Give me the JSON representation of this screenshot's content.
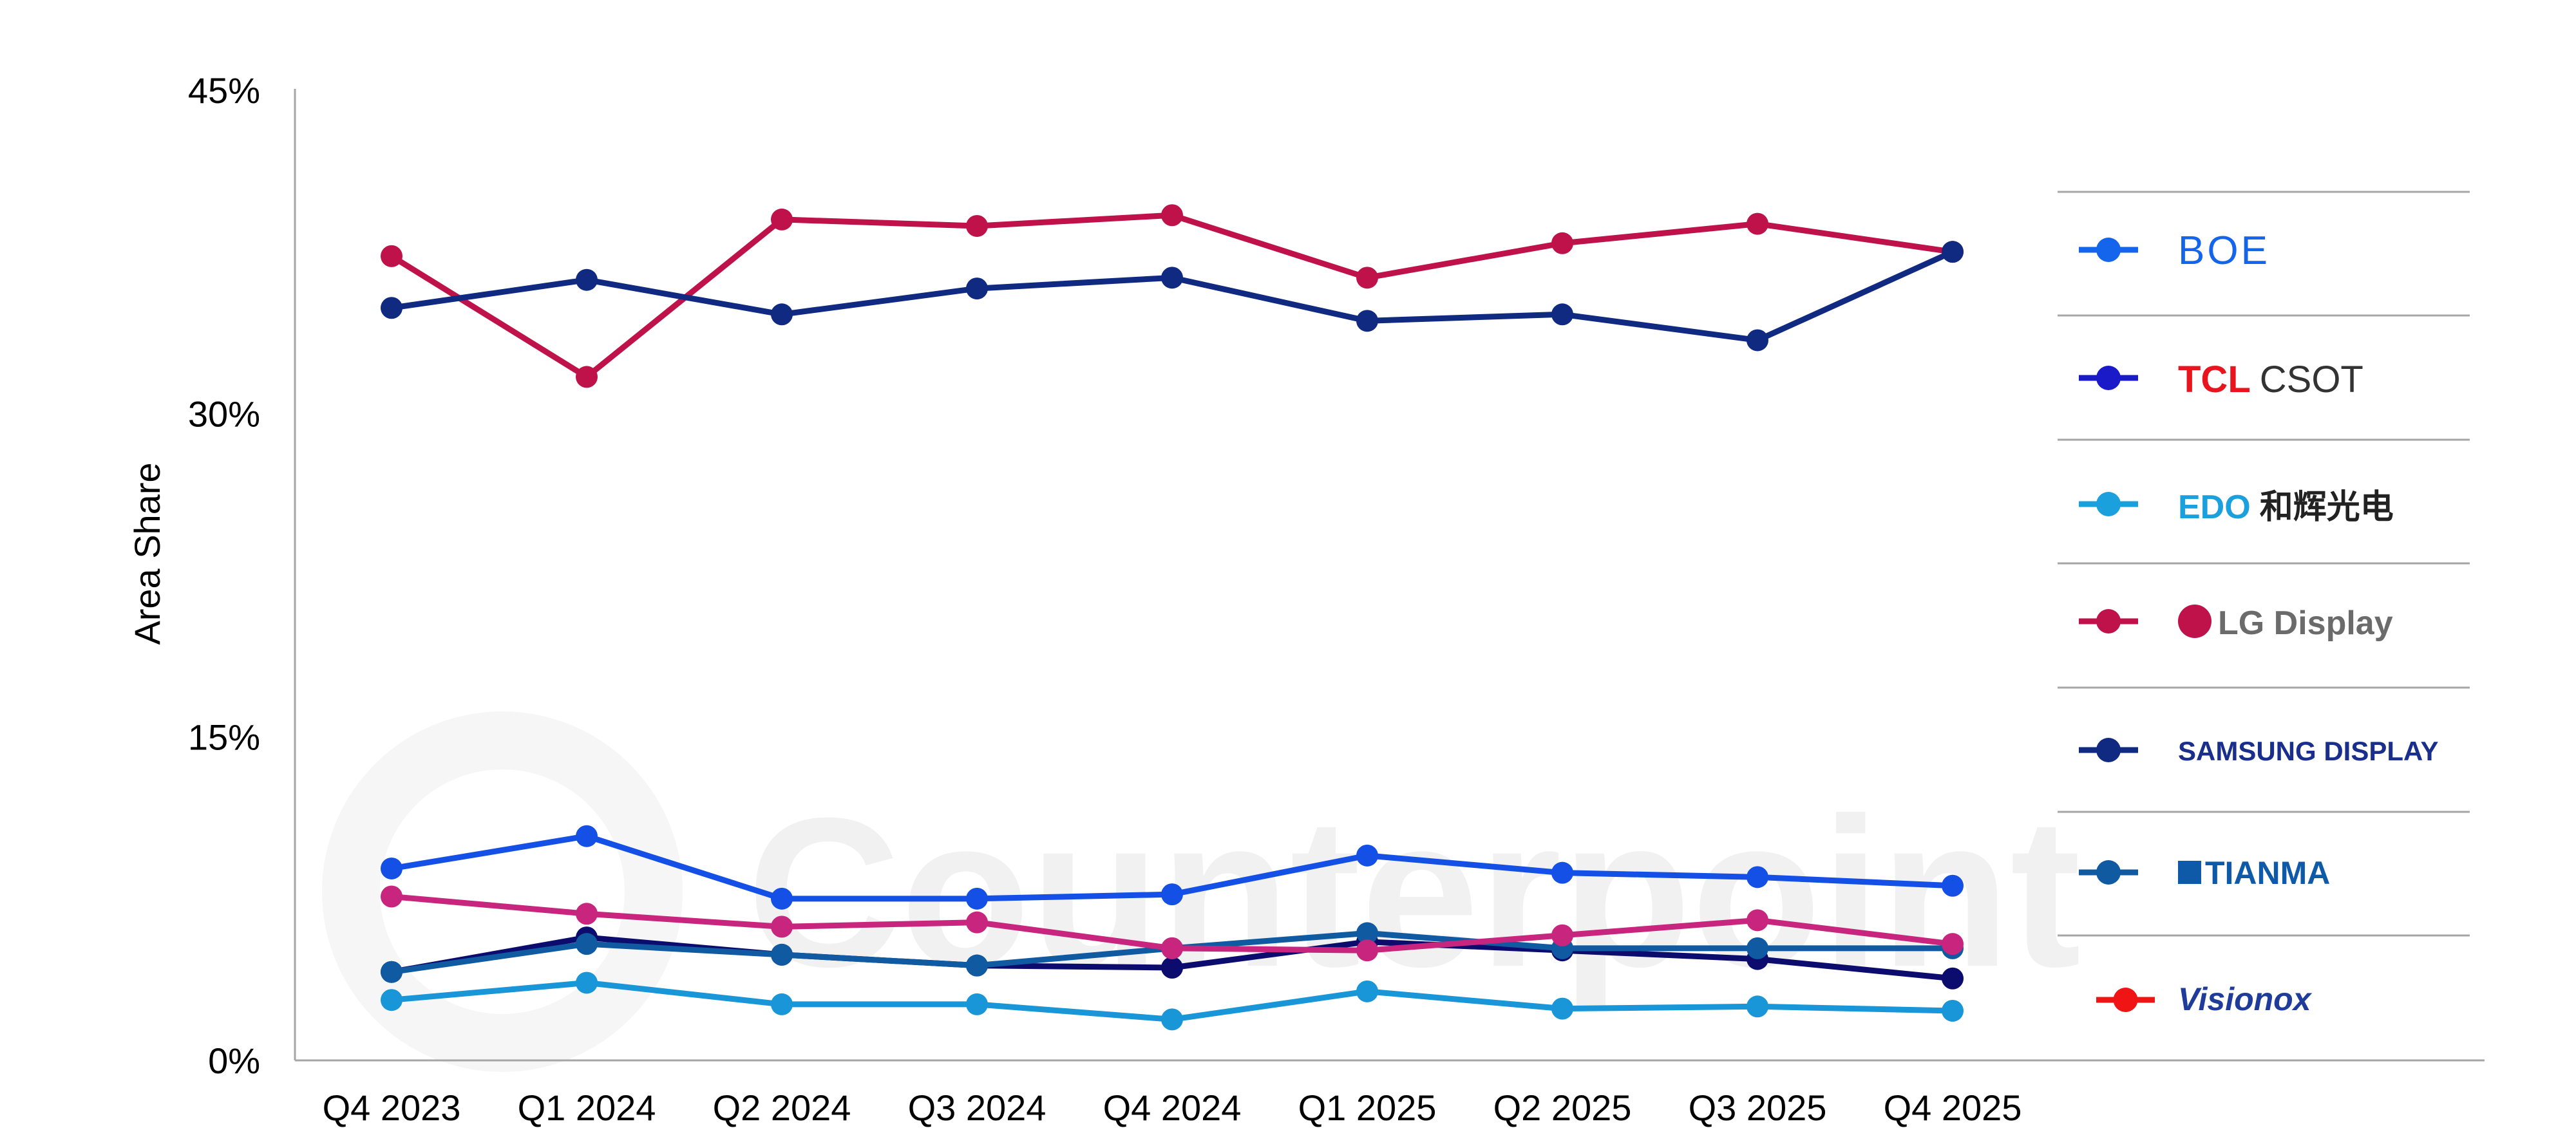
{
  "chart_data": {
    "type": "line",
    "ylabel": "Area Share",
    "xlabel": "",
    "ylim": [
      0,
      45
    ],
    "yticks": [
      "0%",
      "15%",
      "30%",
      "45%"
    ],
    "ytick_values": [
      0,
      15,
      30,
      45
    ],
    "categories": [
      "Q4 2023",
      "Q1 2024",
      "Q2 2024",
      "Q3 2024",
      "Q4 2024",
      "Q1 2025",
      "Q2 2025",
      "Q3 2025",
      "Q4 2025"
    ],
    "grid": false,
    "legend_position": "right",
    "watermark": "Counterpoint",
    "series": [
      {
        "name": "BOE",
        "color": "#1450e6",
        "values": [
          8.9,
          10.4,
          7.5,
          7.5,
          7.7,
          9.5,
          8.7,
          8.5,
          8.1
        ]
      },
      {
        "name": "TCL CSOT",
        "color": "#0c0c6e",
        "values": [
          4.1,
          5.7,
          4.9,
          4.4,
          4.3,
          5.5,
          5.1,
          4.7,
          3.8
        ]
      },
      {
        "name": "和辉光电",
        "color": "#1896d8",
        "values": [
          2.8,
          3.6,
          2.6,
          2.6,
          1.9,
          3.2,
          2.4,
          2.5,
          2.3
        ]
      },
      {
        "name": "LG Display",
        "color": "#c0124a",
        "values": [
          37.3,
          31.7,
          39.0,
          38.7,
          39.2,
          36.3,
          37.9,
          38.8,
          37.5
        ]
      },
      {
        "name": "SAMSUNG DISPLAY",
        "color": "#0f2a80",
        "values": [
          34.9,
          36.2,
          34.6,
          35.8,
          36.3,
          34.3,
          34.6,
          33.4,
          37.5
        ]
      },
      {
        "name": "TIANMA",
        "color": "#0f5aa0",
        "values": [
          4.1,
          5.4,
          4.9,
          4.4,
          5.2,
          5.9,
          5.2,
          5.2,
          5.2
        ]
      },
      {
        "name": "Visionox",
        "color": "#c8267e",
        "values": [
          7.6,
          6.8,
          6.2,
          6.4,
          5.2,
          5.1,
          5.8,
          6.5,
          5.4
        ]
      }
    ],
    "legend": [
      {
        "label": "BOE",
        "marker_color": "#1464ec",
        "text_color": "#1464ec"
      },
      {
        "label": "TCL",
        "label2": "CSOT",
        "marker_color": "#1a1ac8",
        "text_color": "#e8141e",
        "text2_color": "#333333"
      },
      {
        "label": "EDO",
        "label2": "和辉光电",
        "marker_color": "#1aa0dc",
        "text_color": "#1aa0dc",
        "text2_color": "#222222"
      },
      {
        "label": "LG Display",
        "marker_color": "#c0124a",
        "text_color": "#6b6b6b",
        "badge_color": "#c0124a"
      },
      {
        "label": "SAMSUNG DISPLAY",
        "marker_color": "#0f2a80",
        "text_color": "#1a2f8c"
      },
      {
        "label": "TIANMA",
        "marker_color": "#0f5aa0",
        "text_color": "#0f5aa8"
      },
      {
        "label": "Visionox",
        "marker_color": "#f01414",
        "text_color": "#1f3c9a"
      }
    ]
  }
}
